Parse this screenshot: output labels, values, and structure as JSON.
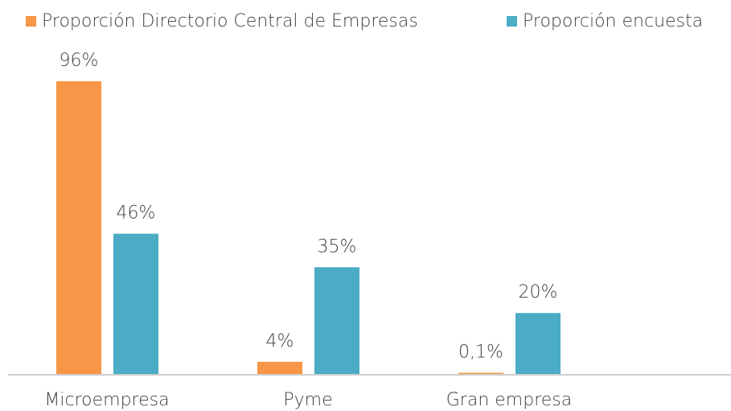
{
  "chart_data": {
    "type": "bar",
    "categories": [
      "Microempresa",
      "Pyme",
      "Gran empresa"
    ],
    "series": [
      {
        "name": "Proporción Directorio Central de Empresas",
        "color": "#f79646",
        "values": [
          96,
          4,
          0.1
        ],
        "value_labels": [
          "96%",
          "4%",
          "0,1%"
        ]
      },
      {
        "name": "Proporción encuesta",
        "color": "#4bacc6",
        "values": [
          46,
          35,
          20
        ],
        "value_labels": [
          "46%",
          "35%",
          "20%"
        ]
      }
    ]
  }
}
